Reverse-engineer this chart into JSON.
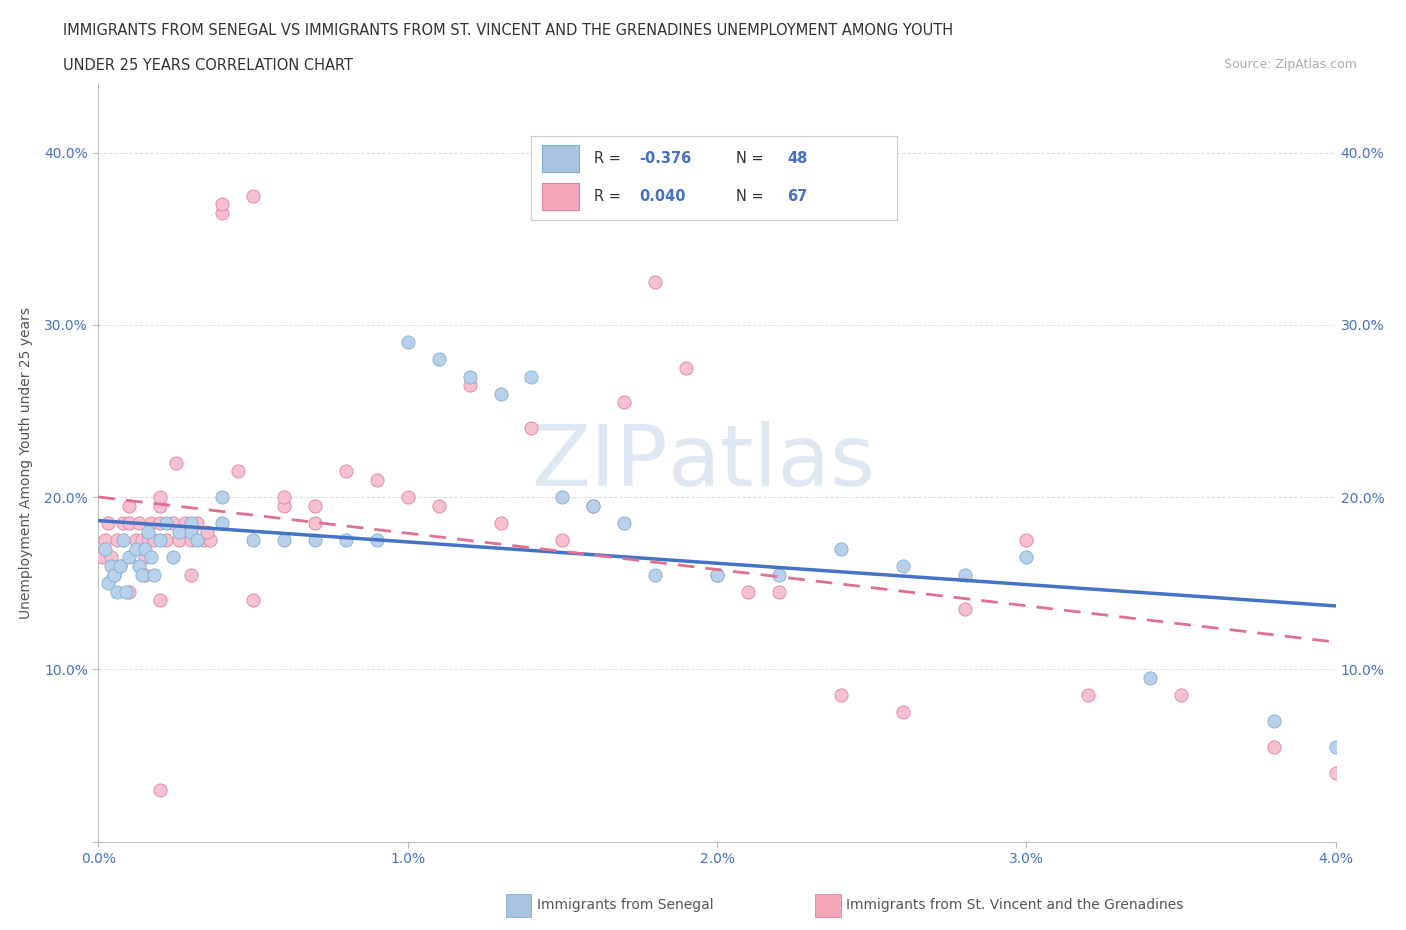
{
  "title_line1": "IMMIGRANTS FROM SENEGAL VS IMMIGRANTS FROM ST. VINCENT AND THE GRENADINES UNEMPLOYMENT AMONG YOUTH",
  "title_line2": "UNDER 25 YEARS CORRELATION CHART",
  "source_text": "Source: ZipAtlas.com",
  "ylabel": "Unemployment Among Youth under 25 years",
  "xlim": [
    0.0,
    0.04
  ],
  "ylim": [
    0.0,
    0.44
  ],
  "xticks": [
    0.0,
    0.01,
    0.02,
    0.03,
    0.04
  ],
  "xtick_labels": [
    "0.0%",
    "1.0%",
    "2.0%",
    "3.0%",
    "4.0%"
  ],
  "yticks": [
    0.0,
    0.1,
    0.2,
    0.3,
    0.4
  ],
  "ytick_labels": [
    "",
    "10.0%",
    "20.0%",
    "30.0%",
    "40.0%"
  ],
  "legend_r1": "-0.376",
  "legend_n1": "48",
  "legend_r2": "0.040",
  "legend_n2": "67",
  "legend_color1": "#a8c4e0",
  "legend_color2": "#f4a7b9",
  "legend_text_color": "#4472c4",
  "series_senegal": {
    "name": "Immigrants from Senegal",
    "color": "#b8d0ea",
    "edge_color": "#7bafd4",
    "trend_color": "#4472c4",
    "trend_style": "solid",
    "x": [
      0.0002,
      0.0003,
      0.0004,
      0.0005,
      0.0006,
      0.0007,
      0.0008,
      0.0009,
      0.001,
      0.0012,
      0.0013,
      0.0014,
      0.0015,
      0.0016,
      0.0017,
      0.0018,
      0.002,
      0.0022,
      0.0024,
      0.0026,
      0.003,
      0.003,
      0.0032,
      0.004,
      0.004,
      0.005,
      0.006,
      0.007,
      0.008,
      0.009,
      0.01,
      0.011,
      0.012,
      0.013,
      0.014,
      0.015,
      0.016,
      0.017,
      0.018,
      0.02,
      0.022,
      0.024,
      0.026,
      0.028,
      0.03,
      0.034,
      0.038,
      0.04
    ],
    "y": [
      0.17,
      0.15,
      0.16,
      0.155,
      0.145,
      0.16,
      0.175,
      0.145,
      0.165,
      0.17,
      0.16,
      0.155,
      0.17,
      0.18,
      0.165,
      0.155,
      0.175,
      0.185,
      0.165,
      0.18,
      0.185,
      0.18,
      0.175,
      0.2,
      0.185,
      0.175,
      0.175,
      0.175,
      0.175,
      0.175,
      0.29,
      0.28,
      0.27,
      0.26,
      0.27,
      0.2,
      0.195,
      0.185,
      0.155,
      0.155,
      0.155,
      0.17,
      0.16,
      0.155,
      0.165,
      0.095,
      0.07,
      0.055
    ]
  },
  "series_vincent": {
    "name": "Immigrants from St. Vincent and the Grenadines",
    "color": "#f7c0cf",
    "edge_color": "#e080a0",
    "trend_color": "#e07090",
    "trend_style": "dashed",
    "x": [
      0.0001,
      0.0002,
      0.0003,
      0.0004,
      0.0005,
      0.0006,
      0.0007,
      0.0008,
      0.001,
      0.001,
      0.0012,
      0.0013,
      0.0014,
      0.0015,
      0.0016,
      0.0017,
      0.0018,
      0.002,
      0.002,
      0.002,
      0.0022,
      0.0024,
      0.0026,
      0.0028,
      0.003,
      0.0032,
      0.0034,
      0.0036,
      0.004,
      0.004,
      0.005,
      0.005,
      0.006,
      0.006,
      0.007,
      0.007,
      0.008,
      0.009,
      0.01,
      0.011,
      0.012,
      0.013,
      0.014,
      0.015,
      0.016,
      0.017,
      0.018,
      0.019,
      0.02,
      0.021,
      0.022,
      0.024,
      0.026,
      0.028,
      0.03,
      0.032,
      0.035,
      0.038,
      0.04,
      0.0025,
      0.0035,
      0.0045,
      0.003,
      0.002,
      0.0015,
      0.001,
      0.002
    ],
    "y": [
      0.165,
      0.175,
      0.185,
      0.165,
      0.155,
      0.175,
      0.16,
      0.185,
      0.195,
      0.185,
      0.175,
      0.185,
      0.175,
      0.165,
      0.175,
      0.185,
      0.175,
      0.195,
      0.2,
      0.185,
      0.175,
      0.185,
      0.175,
      0.185,
      0.175,
      0.185,
      0.175,
      0.175,
      0.365,
      0.37,
      0.375,
      0.14,
      0.195,
      0.2,
      0.185,
      0.195,
      0.215,
      0.21,
      0.2,
      0.195,
      0.265,
      0.185,
      0.24,
      0.175,
      0.195,
      0.255,
      0.325,
      0.275,
      0.155,
      0.145,
      0.145,
      0.085,
      0.075,
      0.135,
      0.175,
      0.085,
      0.085,
      0.055,
      0.04,
      0.22,
      0.18,
      0.215,
      0.155,
      0.14,
      0.155,
      0.145,
      0.03
    ]
  },
  "watermark_zip": "ZIP",
  "watermark_atlas": "atlas",
  "background_color": "#ffffff",
  "grid_color": "#d8d8d8"
}
